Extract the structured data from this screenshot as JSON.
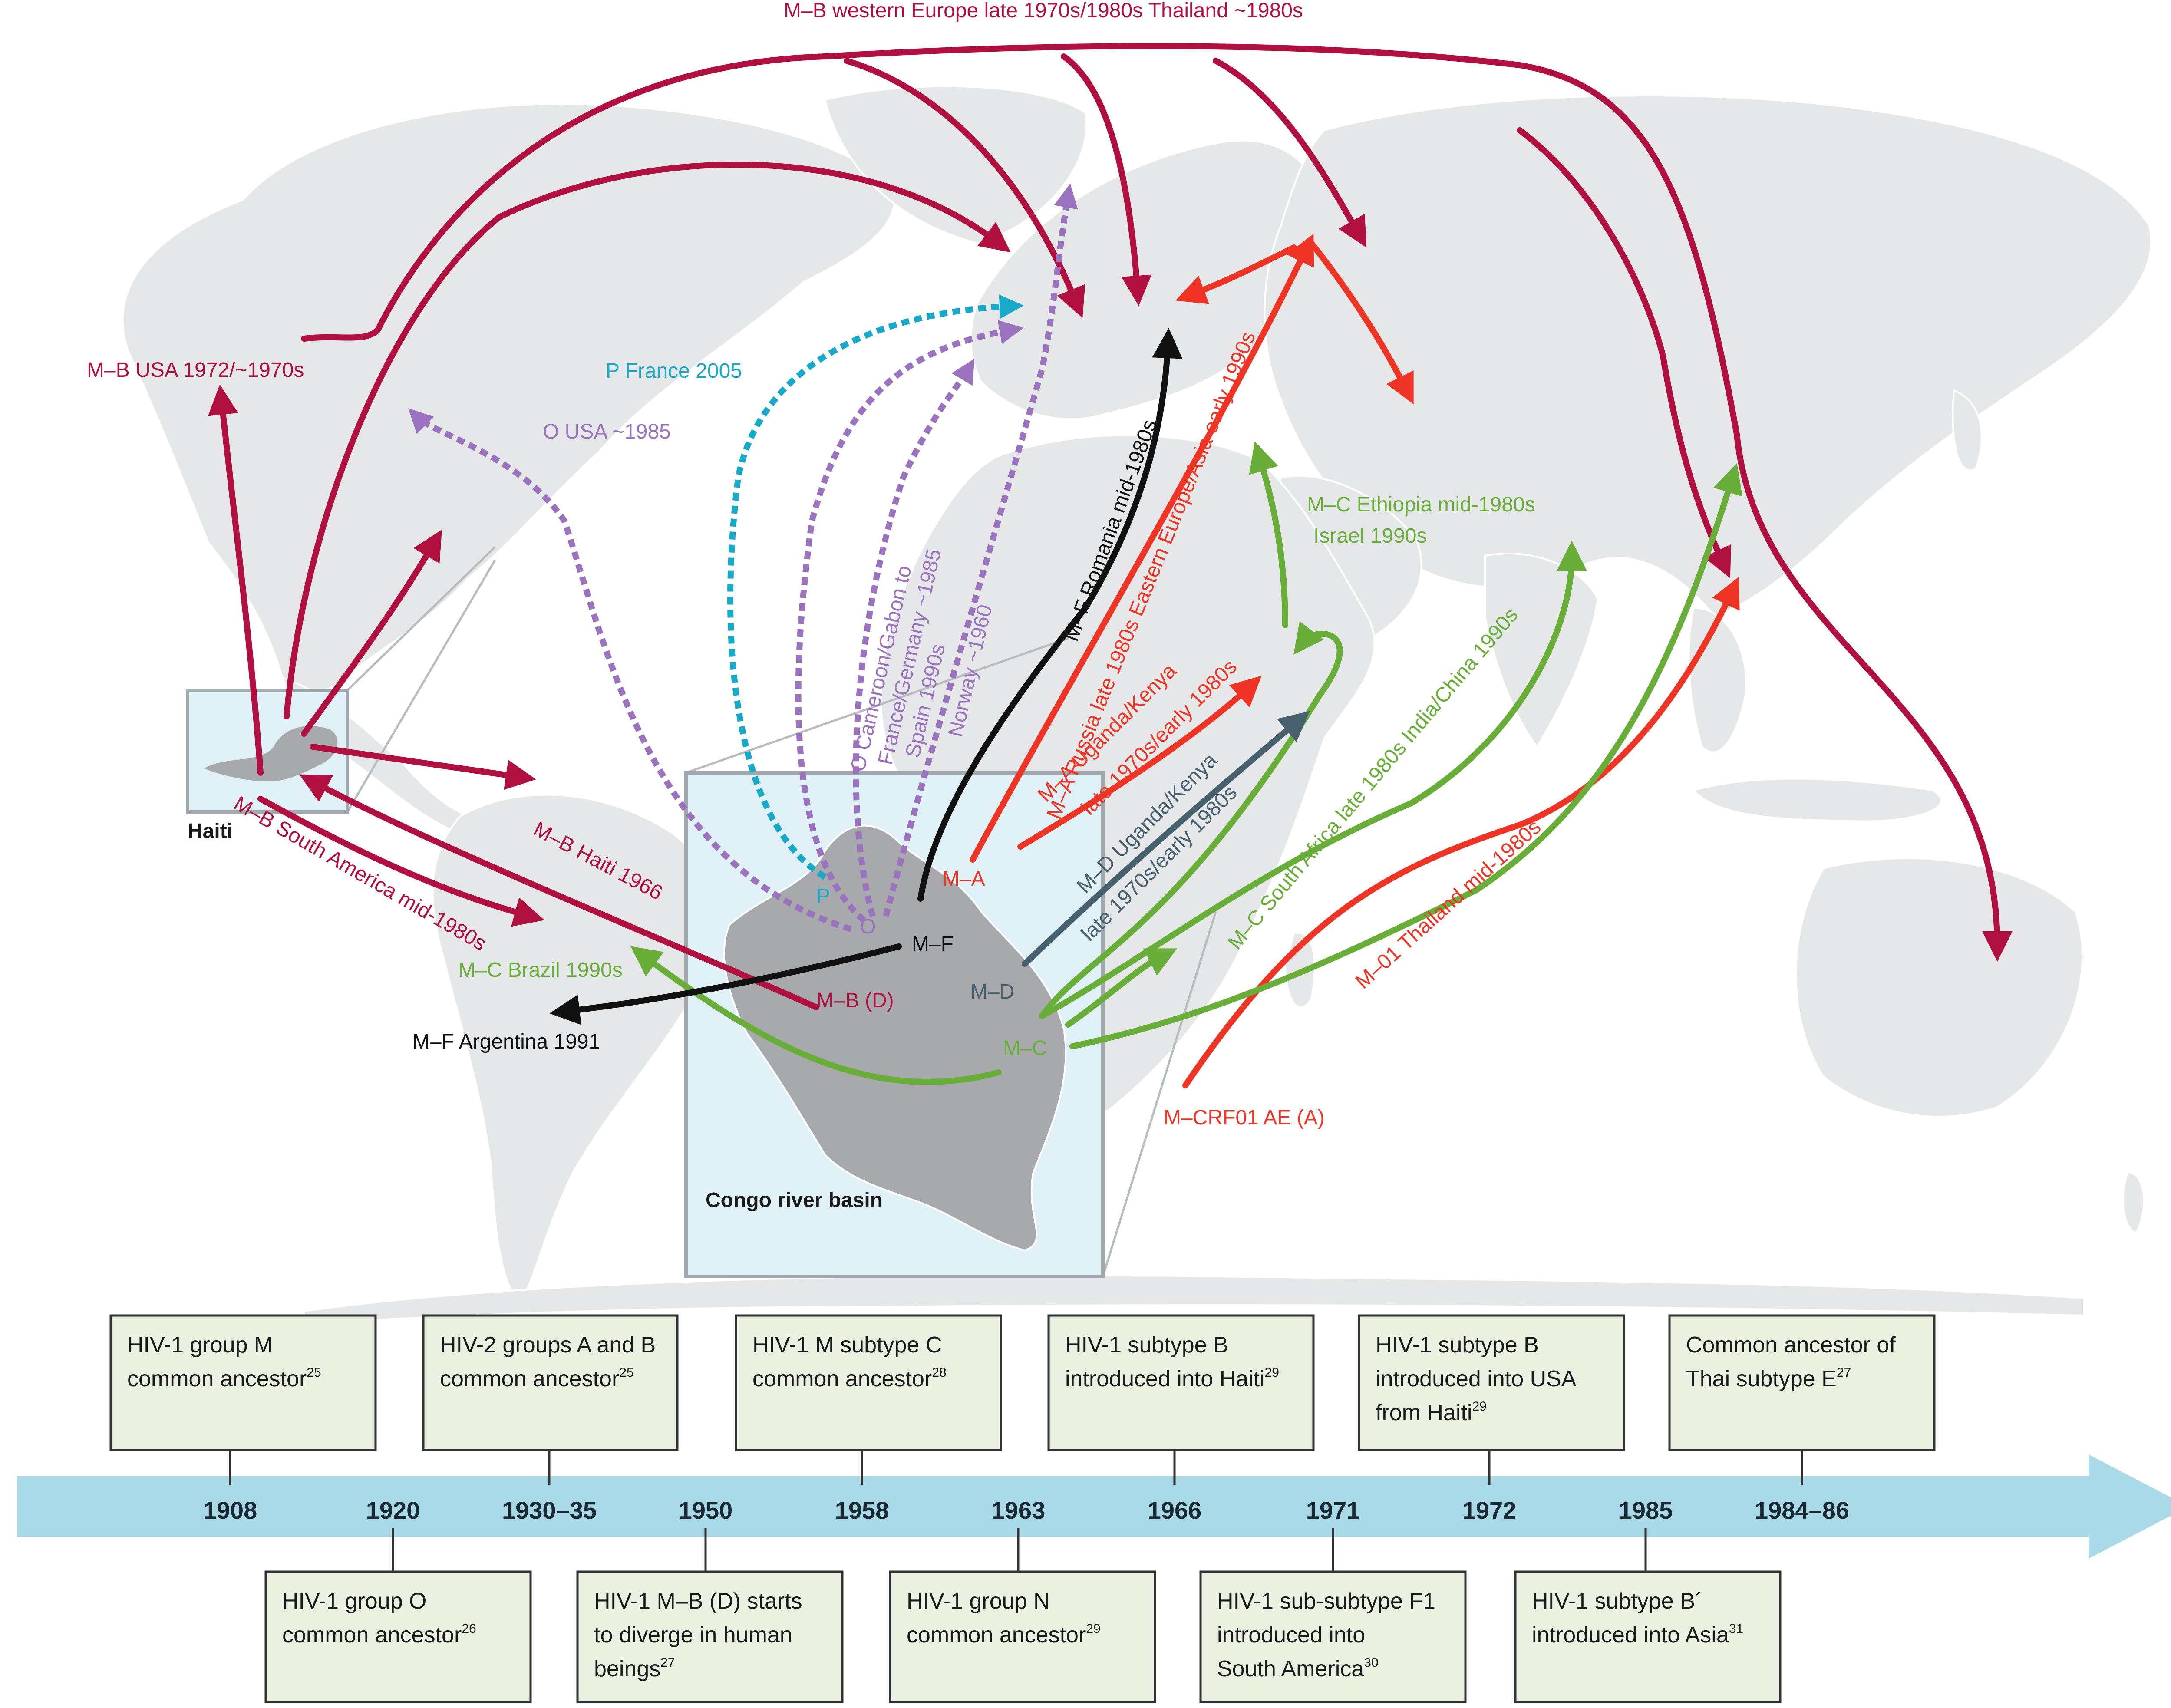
{
  "colors": {
    "mb": "#b0103f",
    "ma": "#ee3424",
    "mc": "#6aae3a",
    "mf": "#111111",
    "md": "#46606e",
    "o": "#9a72bd",
    "p": "#18a9c8",
    "land": "#e6e7e8",
    "congo": "#a7a9ac",
    "inset": "#dff0f6",
    "timeline": "#a9d8e6",
    "box": "#eaf1e1"
  },
  "map": {
    "top_label": "M–B western Europe late 1970s/1980s Thailand ~1980s",
    "haiti_label": "Haiti",
    "congo_label": "Congo river basin",
    "routes": {
      "mb_usa": "M–B USA 1972/~1970s",
      "o_usa": "O USA ~1985",
      "p_france": "P France  2005",
      "o_europe": "O Cameroon/Gabon to France/Germany ~1985 Spain 1990s",
      "o_norway": "Norway ~1960",
      "mf_romania": "M–F Romania mid-1980s",
      "ma_russia": "M–A Russia late 1980s Eastern Europe/Asia early 1990s",
      "ma_uganda_1": "M–A Uganda/Kenya",
      "ma_uganda_2": "late 1970s/early 1980s",
      "md_uganda_1": "M–D Uganda/Kenya",
      "md_uganda_2": "late 1970s/early 1980s",
      "mc_ethiopia_1": "M–C Ethiopia mid-1980s",
      "mc_ethiopia_2": "Israel 1990s",
      "mc_sa": "M–C South Africa late 1980s India/China 1990s",
      "m01_thailand": "M–01 Thailand mid-1980s",
      "mcrf01": "M–CRF01 AE (A)",
      "mb_haiti": "M–B Haiti 1966",
      "mb_sa": "M–B South America mid-1980s",
      "mc_brazil": "M–C Brazil 1990s",
      "mf_argentina": "M–F Argentina 1991"
    },
    "origins": {
      "p": "P",
      "o": "O",
      "mf": "M–F",
      "ma": "M–A",
      "md": "M–D",
      "mc": "M–C",
      "mbd": "M–B (D)"
    }
  },
  "timeline": {
    "years": [
      "1908",
      "1920",
      "1930–35",
      "1950",
      "1958",
      "1963",
      "1966",
      "1971",
      "1972",
      "1985",
      "1984–86"
    ],
    "events_top": [
      {
        "year": "1908",
        "lines": [
          "HIV-1 group M",
          "common ancestor"
        ],
        "ref": "25"
      },
      {
        "year": "1930–35",
        "lines": [
          "HIV-2 groups A and B",
          "common ancestor"
        ],
        "ref": "25"
      },
      {
        "year": "1958",
        "lines": [
          "HIV-1 M subtype C",
          "common ancestor"
        ],
        "ref": "28"
      },
      {
        "year": "1966",
        "lines": [
          "HIV-1 subtype B",
          "introduced into Haiti"
        ],
        "ref": "29"
      },
      {
        "year": "1972",
        "lines": [
          "HIV-1 subtype B",
          "introduced into USA",
          "from Haiti"
        ],
        "ref": "29"
      },
      {
        "year": "1984–86",
        "lines": [
          "Common ancestor of",
          "Thai subtype E"
        ],
        "ref": "27"
      }
    ],
    "events_bottom": [
      {
        "year": "1920",
        "lines": [
          "HIV-1 group O",
          "common ancestor"
        ],
        "ref": "26"
      },
      {
        "year": "1950",
        "lines": [
          "HIV-1 M–B (D) starts",
          "to diverge in human",
          "beings"
        ],
        "ref": "27"
      },
      {
        "year": "1963",
        "lines": [
          "HIV-1 group N",
          "common ancestor"
        ],
        "ref": "29"
      },
      {
        "year": "1971",
        "lines": [
          "HIV-1 sub-subtype F1",
          "introduced into",
          "South America"
        ],
        "ref": "30"
      },
      {
        "year": "1985",
        "lines": [
          "HIV-1 subtype B´",
          "introduced into Asia"
        ],
        "ref": "31"
      }
    ]
  }
}
